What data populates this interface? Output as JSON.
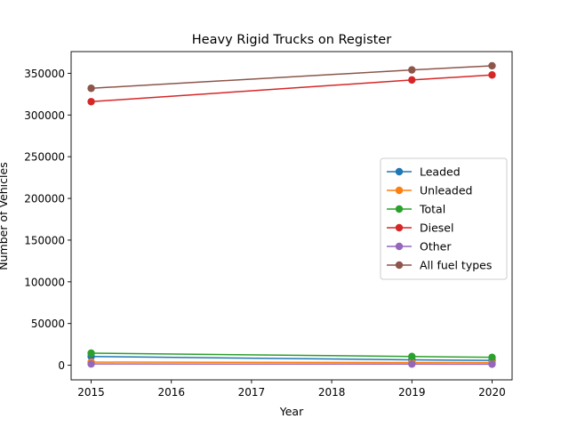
{
  "chart_data": {
    "type": "line",
    "title": "Heavy Rigid Trucks on Register",
    "xlabel": "Year",
    "ylabel": "Number of Vehicles",
    "xlim": [
      2014.75,
      2020.25
    ],
    "ylim": [
      -17500,
      376000
    ],
    "x_ticks": [
      2015,
      2016,
      2017,
      2018,
      2019,
      2020
    ],
    "y_ticks": [
      0,
      50000,
      100000,
      150000,
      200000,
      250000,
      300000,
      350000
    ],
    "x": [
      2015,
      2019,
      2020
    ],
    "legend_position": "center-right",
    "grid": false,
    "series": [
      {
        "name": "Leaded",
        "color": "#1f77b4",
        "values": [
          10500,
          6500,
          5800
        ]
      },
      {
        "name": "Unleaded",
        "color": "#ff7f0e",
        "values": [
          3800,
          3300,
          3200
        ]
      },
      {
        "name": "Total",
        "color": "#2ca02c",
        "values": [
          14500,
          10500,
          9500
        ]
      },
      {
        "name": "Diesel",
        "color": "#d62728",
        "values": [
          316000,
          342000,
          348000
        ]
      },
      {
        "name": "Other",
        "color": "#9467bd",
        "values": [
          1500,
          1400,
          1300
        ]
      },
      {
        "name": "All fuel types",
        "color": "#8c564b",
        "values": [
          332000,
          354000,
          359000
        ]
      }
    ]
  }
}
